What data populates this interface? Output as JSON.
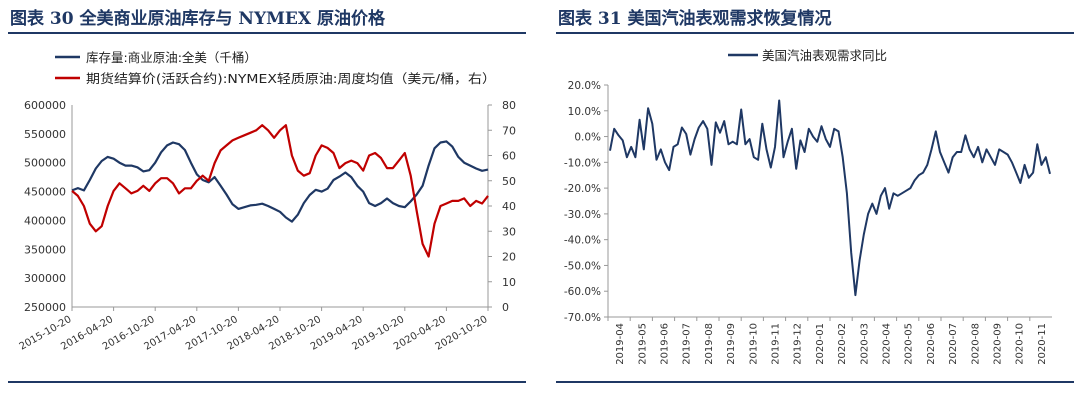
{
  "left": {
    "figure_title": "图表 30   全美商业原油库存与 NYMEX 原油价格",
    "chart_data": {
      "type": "line",
      "legend": [
        "库存量:商业原油:全美（千桶）",
        "期货结算价(活跃合约):NYMEX轻质原油:周度均值（美元/桶，右）"
      ],
      "x_ticks": [
        "2015-10-20",
        "2016-04-20",
        "2016-10-20",
        "2017-04-20",
        "2017-10-20",
        "2018-04-20",
        "2018-10-20",
        "2019-04-20",
        "2019-10-20",
        "2020-04-20",
        "2020-10-20"
      ],
      "y_left_ticks": [
        "600000",
        "550000",
        "500000",
        "450000",
        "400000",
        "350000",
        "300000",
        "250000"
      ],
      "y_right_ticks": [
        "80",
        "70",
        "60",
        "50",
        "40",
        "30",
        "20",
        "10",
        "0"
      ],
      "ylim_left": [
        250000,
        600000
      ],
      "ylim_right": [
        0,
        80
      ],
      "series": [
        {
          "name": "库存量:商业原油:全美（千桶）",
          "axis": "left",
          "color": "#1f3864",
          "values": [
            452000,
            456000,
            452000,
            470000,
            490000,
            503000,
            510000,
            507000,
            500000,
            495000,
            495000,
            492000,
            485000,
            487000,
            500000,
            518000,
            530000,
            535000,
            532000,
            522000,
            500000,
            480000,
            470000,
            466000,
            475000,
            460000,
            445000,
            428000,
            420000,
            423000,
            426000,
            427000,
            429000,
            425000,
            420000,
            415000,
            405000,
            398000,
            410000,
            430000,
            444000,
            453000,
            450000,
            455000,
            470000,
            476000,
            483000,
            475000,
            460000,
            450000,
            430000,
            425000,
            430000,
            438000,
            430000,
            425000,
            423000,
            433000,
            445000,
            460000,
            495000,
            525000,
            535000,
            537000,
            528000,
            510000,
            500000,
            495000,
            490000,
            486000,
            488000
          ]
        },
        {
          "name": "期货结算价(活跃合约):NYMEX轻质原油:周度均值（美元/桶，右）",
          "axis": "right",
          "color": "#c00000",
          "values": [
            46,
            44,
            40,
            33,
            30,
            32,
            40,
            46,
            49,
            47,
            45,
            46,
            48,
            46,
            49,
            51,
            51,
            49,
            45,
            47,
            47,
            50,
            52,
            50,
            57,
            62,
            64,
            66,
            67,
            68,
            69,
            70,
            72,
            70,
            67,
            70,
            72,
            60,
            54,
            52,
            53,
            60,
            64,
            63,
            61,
            55,
            57,
            58,
            57,
            54,
            60,
            61,
            59,
            55,
            55,
            58,
            61,
            52,
            38,
            25,
            20,
            33,
            40,
            41,
            42,
            42,
            43,
            40,
            42,
            41,
            44
          ]
        }
      ]
    }
  },
  "right": {
    "figure_title": "图表 31   美国汽油表观需求恢复情况",
    "chart_data": {
      "type": "line",
      "legend": [
        "美国汽油表观需求同比"
      ],
      "x_ticks": [
        "2019-04",
        "2019-05",
        "2019-06",
        "2019-07",
        "2019-08",
        "2019-09",
        "2019-10",
        "2019-11",
        "2019-12",
        "2020-01",
        "2020-02",
        "2020-03",
        "2020-04",
        "2020-05",
        "2020-06",
        "2020-07",
        "2020-08",
        "2020-09",
        "2020-10",
        "2020-11"
      ],
      "y_ticks": [
        "20.0%",
        "10.0%",
        "0.0%",
        "-10.0%",
        "-20.0%",
        "-30.0%",
        "-40.0%",
        "-50.0%",
        "-60.0%",
        "-70.0%"
      ],
      "ylim": [
        -70,
        20
      ],
      "series": [
        {
          "name": "美国汽油表观需求同比",
          "color": "#1f3864",
          "values": [
            -5.5,
            3.0,
            0.5,
            -1.5,
            -8.0,
            -4.0,
            -8.0,
            6.5,
            -5.0,
            11.0,
            5.0,
            -9.0,
            -5.0,
            -10.0,
            -13.0,
            -4.0,
            -3.0,
            3.5,
            1.0,
            -7.0,
            -1.0,
            3.5,
            6.0,
            3.0,
            -11.0,
            5.5,
            1.5,
            6.0,
            -3.0,
            -2.0,
            -3.0,
            10.5,
            -3.0,
            -1.0,
            -8.0,
            -9.0,
            5.0,
            -5.0,
            -12.0,
            -4.0,
            14.0,
            -8.0,
            -2.0,
            3.0,
            -12.5,
            -1.5,
            -6.0,
            3.0,
            0.0,
            -2.0,
            4.0,
            -1.0,
            -4.0,
            3.0,
            2.0,
            -8.0,
            -22.0,
            -45.0,
            -61.5,
            -48.0,
            -38.0,
            -30.0,
            -26.0,
            -30.0,
            -23.0,
            -20.0,
            -28.0,
            -22.0,
            -23.0,
            -22.0,
            -21.0,
            -20.0,
            -17.0,
            -15.0,
            -14.0,
            -11.0,
            -5.0,
            2.0,
            -6.0,
            -10.0,
            -14.0,
            -8.0,
            -6.0,
            -6.0,
            0.5,
            -5.0,
            -8.0,
            -4.0,
            -10.0,
            -5.0,
            -8.0,
            -11.0,
            -5.0,
            -6.0,
            -7.0,
            -10.0,
            -14.0,
            -18.0,
            -11.0,
            -16.0,
            -14.0,
            -3.0,
            -11.0,
            -8.0,
            -14.5
          ]
        }
      ]
    }
  }
}
